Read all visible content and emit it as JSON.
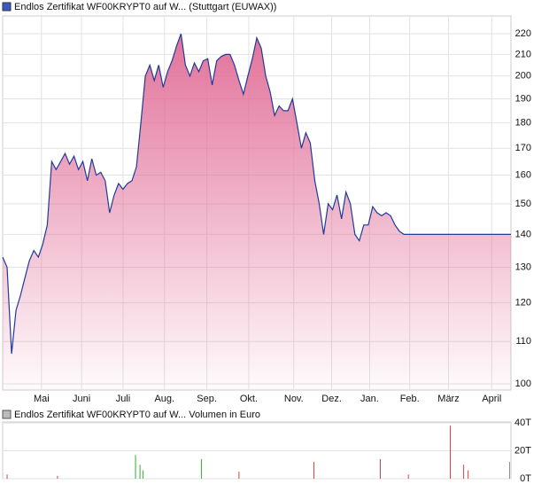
{
  "chart_data": [
    {
      "type": "area",
      "title": "Endlos Zertifikat WF00KRYPT0 auf W... (Stuttgart (EUWAX))",
      "color": "#1f3a9a",
      "fill_color": "#e2729a",
      "log_scale": true,
      "grid": true,
      "xlim": [
        0,
        114
      ],
      "xticks": [
        {
          "value": 8.7,
          "label": "Mai"
        },
        {
          "value": 17.7,
          "label": "Juni"
        },
        {
          "value": 27,
          "label": "Juli"
        },
        {
          "value": 36.3,
          "label": "Aug."
        },
        {
          "value": 45.8,
          "label": "Sep."
        },
        {
          "value": 55.2,
          "label": "Okt."
        },
        {
          "value": 65.3,
          "label": "Nov."
        },
        {
          "value": 73.8,
          "label": "Dez."
        },
        {
          "value": 82.3,
          "label": "Jan."
        },
        {
          "value": 91.3,
          "label": "Feb."
        },
        {
          "value": 100,
          "label": "März"
        },
        {
          "value": 109.7,
          "label": "April"
        }
      ],
      "ylim": [
        98.6,
        229
      ],
      "yticks": [
        100,
        110,
        120,
        130,
        140,
        150,
        160,
        170,
        180,
        190,
        200,
        210,
        220
      ],
      "values": [
        133,
        130,
        107,
        118,
        122,
        127,
        132,
        135,
        133,
        137,
        143,
        165,
        162,
        165,
        168,
        164,
        167,
        162,
        165,
        158,
        166,
        160,
        161,
        158,
        147,
        153,
        157,
        155,
        157,
        158,
        163,
        180,
        200,
        205,
        198,
        205,
        195,
        202,
        207,
        214,
        220,
        205,
        200,
        206,
        202,
        207,
        208,
        196,
        207,
        209,
        210,
        210,
        205,
        198,
        192,
        200,
        208,
        218,
        213,
        200,
        193,
        183,
        187,
        185,
        185,
        190,
        180,
        170,
        176,
        172,
        158,
        150,
        140,
        150,
        148,
        153,
        145,
        154,
        150,
        140,
        138,
        143,
        143,
        149,
        147,
        146,
        147,
        146,
        143,
        141,
        140,
        140,
        140,
        140,
        140,
        140,
        140,
        140,
        140,
        140,
        140,
        140,
        140,
        140,
        140,
        140,
        140,
        140,
        140,
        140,
        140,
        140,
        140,
        140,
        140
      ]
    },
    {
      "type": "bar",
      "title": "Endlos Zertifikat WF00KRYPT0 auf W... Volumen in Euro",
      "grid": true,
      "xlim": [
        0,
        114
      ],
      "ylim": [
        0,
        40.7
      ],
      "yticks": [
        {
          "value": 0,
          "label": "0T"
        },
        {
          "value": 20,
          "label": "20T"
        },
        {
          "value": 40,
          "label": "40T"
        }
      ],
      "x": [
        1,
        12.3,
        29.8,
        30.8,
        31.5,
        44.6,
        53,
        69.8,
        84.7,
        91,
        100.4,
        103.4,
        104.4,
        113.7
      ],
      "values": [
        3,
        2,
        17,
        10,
        6,
        14,
        5,
        12,
        14,
        3,
        38,
        10,
        6,
        12
      ],
      "colors": [
        "#d04040",
        "#d04040",
        "#30b030",
        "#30b030",
        "#30b030",
        "#30b030",
        "#d04040",
        "#d04040",
        "#d04040",
        "#d04040",
        "#d04040",
        "#d04040",
        "#d04040",
        "#909090"
      ]
    }
  ]
}
